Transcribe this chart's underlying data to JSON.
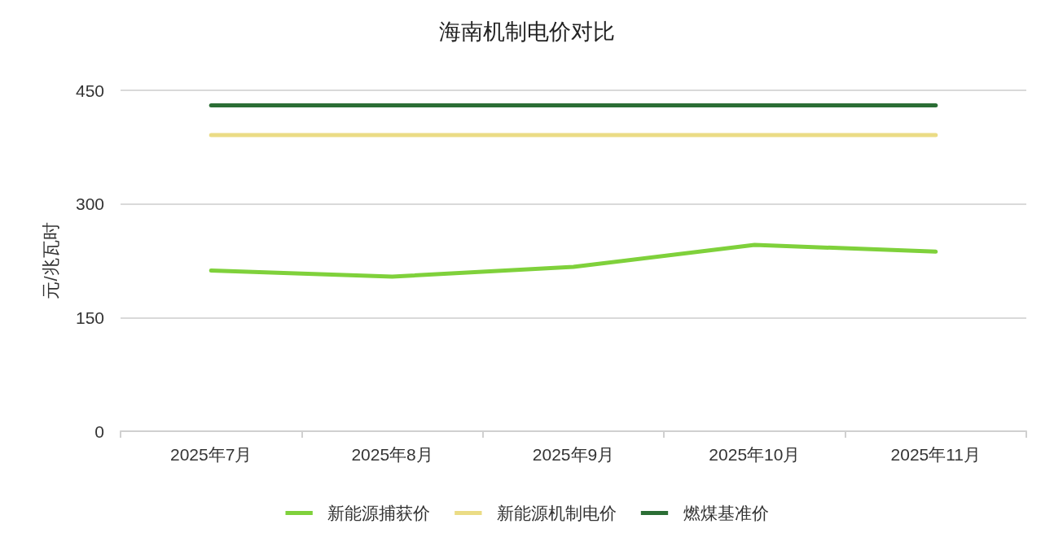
{
  "chart_data": {
    "type": "line",
    "title": "海南机制电价对比",
    "ylabel": "元/兆瓦时",
    "categories": [
      "2025年7月",
      "2025年8月",
      "2025年9月",
      "2025年10月",
      "2025年11月"
    ],
    "series": [
      {
        "name": "新能源捕获价",
        "color": "#7fd13b",
        "values": [
          212,
          204,
          217,
          246,
          237
        ]
      },
      {
        "name": "新能源机制电价",
        "color": "#ebdc85",
        "values": [
          391,
          391,
          391,
          391,
          391
        ]
      },
      {
        "name": "燃煤基准价",
        "color": "#2b6e35",
        "values": [
          430,
          430,
          430,
          430,
          430
        ]
      }
    ],
    "ylim": [
      0,
      450
    ],
    "yticks": [
      0,
      150,
      300,
      450
    ],
    "grid": "y",
    "legend": "bottom",
    "marker": "none",
    "line_style": "solid"
  }
}
